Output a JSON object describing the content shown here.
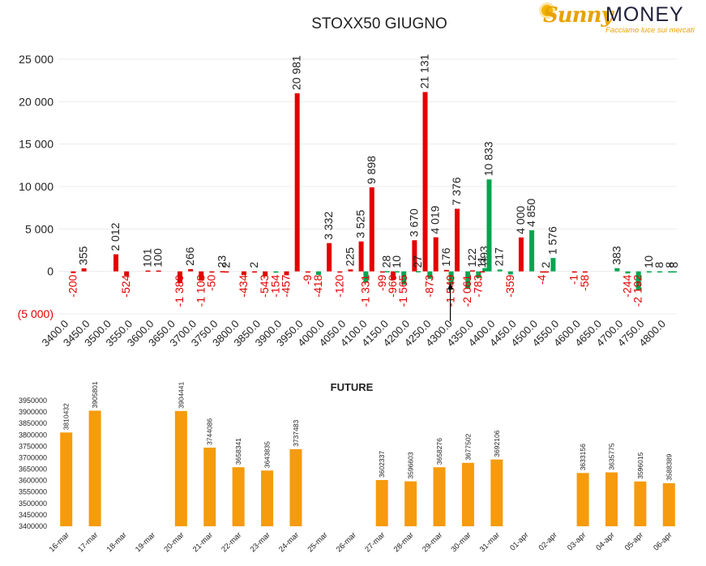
{
  "logo": {
    "brand_first": "Sunny",
    "brand_second": "MONEY",
    "tagline": "Facciamo luce sui mercati"
  },
  "colors": {
    "positive": "#00a650",
    "negative": "#e30000",
    "future_bar": "#f59b0d",
    "axis_text": "#222222",
    "negative_tick": "#e30000"
  },
  "chart_data": [
    {
      "type": "bar",
      "title": "STOXX50 GIUGNO",
      "ylim": [
        -5000,
        25000
      ],
      "yticks": [
        -5000,
        0,
        5000,
        10000,
        15000,
        20000,
        25000
      ],
      "ytick_labels": [
        "(5 000)",
        "0",
        "5 000",
        "10 000",
        "15 000",
        "20 000",
        "25 000"
      ],
      "grid": true,
      "legend": "none",
      "categories": [
        "3400.0",
        "3450.0",
        "3500.0",
        "3550.0",
        "3600.0",
        "3650.0",
        "3700.0",
        "3750.0",
        "3800.0",
        "3850.0",
        "3900.0",
        "3950.0",
        "4000.0",
        "4050.0",
        "4100.0",
        "4150.0",
        "4200.0",
        "4250.0",
        "4300.0",
        "4350.0",
        "4400.0",
        "4450.0",
        "4500.0",
        "4550.0",
        "4600.0",
        "4650.0",
        "4700.0",
        "4750.0",
        "4800.0"
      ],
      "marker_strike": "4300.0",
      "series": [
        {
          "color": "red",
          "values": [
            -200,
            2012,
            101,
            -1389,
            -1108,
            -50,
            -434,
            -543,
            -457,
            20981,
            -418,
            -120,
            3525,
            -960,
            3670,
            21131,
            -1549,
            122,
            -359,
            -4,
            -1,
            -58,
            null,
            null,
            null,
            null,
            null,
            null,
            null
          ],
          "labels": [
            "-200",
            "2 012",
            "101",
            "-1 389",
            "-1 108",
            "-50",
            "-434",
            "-543",
            "-457",
            "20 981",
            "-418",
            "-120",
            "3 525",
            "-960",
            "3 670",
            "21 131",
            "-1 549",
            "122",
            "-359",
            "-4",
            "-1",
            "-58",
            null,
            null,
            null,
            null,
            null,
            null,
            null
          ],
          "strikes": [
            "3400.0",
            "3500.0",
            "3600.0",
            "3650.0",
            "3700.0",
            "3750.0",
            "3800.0",
            "3850.0",
            "3900.0",
            "3950.0",
            "4000.0",
            "4050.0",
            "4100.0",
            "4150.0",
            "4200.0",
            "4250.0",
            "4300.0",
            "4350.0",
            "4450.0",
            "4500.0",
            "4600.0",
            "4600.0"
          ]
        }
      ],
      "bars": [
        {
          "slot": 0,
          "side": "r",
          "value": -200,
          "label": "-200",
          "color": "negative"
        },
        {
          "slot": 1,
          "side": "l",
          "value": 355,
          "label": "355",
          "color": "negative"
        },
        {
          "slot": 2,
          "side": "r",
          "value": 2012,
          "label": "2 012",
          "color": "negative"
        },
        {
          "slot": 3,
          "side": "l",
          "value": -524,
          "label": "-524",
          "color": "negative"
        },
        {
          "slot": 4,
          "side": "l",
          "value": 101,
          "label": "101",
          "color": "negative"
        },
        {
          "slot": 4,
          "side": "r",
          "value": 100,
          "label": "100",
          "color": "negative"
        },
        {
          "slot": 5,
          "side": "r",
          "value": -1389,
          "label": "-1 389",
          "color": "negative"
        },
        {
          "slot": 6,
          "side": "l",
          "value": 266,
          "label": "266",
          "color": "negative"
        },
        {
          "slot": 6,
          "side": "r",
          "value": -1108,
          "label": "-1 108",
          "color": "negative"
        },
        {
          "slot": 7,
          "side": "l",
          "value": -50,
          "label": "-50",
          "color": "negative"
        },
        {
          "slot": 7,
          "side": "r",
          "value": 23,
          "label": "23",
          "color": "negative"
        },
        {
          "slot": 7,
          "side": "r2",
          "value": 2,
          "label": "2",
          "color": "negative"
        },
        {
          "slot": 8,
          "side": "r",
          "value": -434,
          "label": "-434",
          "color": "negative"
        },
        {
          "slot": 9,
          "side": "l",
          "value": 2,
          "label": "2",
          "color": "negative"
        },
        {
          "slot": 9,
          "side": "r",
          "value": -543,
          "label": "-543",
          "color": "negative"
        },
        {
          "slot": 10,
          "side": "l",
          "value": -154,
          "label": "-154",
          "color": "positive"
        },
        {
          "slot": 10,
          "side": "r",
          "value": -457,
          "label": "-457",
          "color": "negative"
        },
        {
          "slot": 11,
          "side": "l",
          "value": 20981,
          "label": "20 981",
          "color": "negative"
        },
        {
          "slot": 11,
          "side": "r",
          "value": -9,
          "label": "-9",
          "color": "negative"
        },
        {
          "slot": 12,
          "side": "l",
          "value": -418,
          "label": "-418",
          "color": "positive"
        },
        {
          "slot": 12,
          "side": "r",
          "value": 3332,
          "label": "3 332",
          "color": "negative"
        },
        {
          "slot": 13,
          "side": "l",
          "value": -120,
          "label": "-120",
          "color": "negative"
        },
        {
          "slot": 13,
          "side": "r",
          "value": 225,
          "label": "225",
          "color": "negative"
        },
        {
          "slot": 14,
          "side": "l",
          "value": 3525,
          "label": "3 525",
          "color": "negative"
        },
        {
          "slot": 14,
          "side": "m",
          "value": -1331,
          "label": "-1 331",
          "color": "positive"
        },
        {
          "slot": 14,
          "side": "r",
          "value": 9898,
          "label": "9 898",
          "color": "negative"
        },
        {
          "slot": 15,
          "side": "l",
          "value": -99,
          "label": "-99",
          "color": "negative"
        },
        {
          "slot": 15,
          "side": "m",
          "value": 28,
          "label": "28",
          "color": "positive"
        },
        {
          "slot": 15,
          "side": "r",
          "value": -960,
          "label": "-960",
          "color": "negative"
        },
        {
          "slot": 15,
          "side": "r2",
          "value": 10,
          "label": "10",
          "color": "positive"
        },
        {
          "slot": 16,
          "side": "l",
          "value": -1565,
          "label": "-1 565",
          "color": "positive"
        },
        {
          "slot": 16,
          "side": "r",
          "value": 3670,
          "label": "3 670",
          "color": "negative"
        },
        {
          "slot": 16,
          "side": "r2",
          "value": 27,
          "label": "27",
          "color": "positive"
        },
        {
          "slot": 17,
          "side": "l",
          "value": 21131,
          "label": "21 131",
          "color": "negative"
        },
        {
          "slot": 17,
          "side": "m",
          "value": -873,
          "label": "-873",
          "color": "positive"
        },
        {
          "slot": 17,
          "side": "r",
          "value": 4019,
          "label": "4 019",
          "color": "negative"
        },
        {
          "slot": 18,
          "side": "l",
          "value": 176,
          "label": "176",
          "color": "negative"
        },
        {
          "slot": 18,
          "side": "m",
          "value": -1549,
          "label": "-1 549",
          "color": "positive"
        },
        {
          "slot": 18,
          "side": "r",
          "value": 7376,
          "label": "7 376",
          "color": "negative"
        },
        {
          "slot": 19,
          "side": "l",
          "value": -2061,
          "label": "-2 061",
          "color": "positive"
        },
        {
          "slot": 19,
          "side": "m",
          "value": 122,
          "label": "122",
          "color": "negative"
        },
        {
          "slot": 19,
          "side": "r",
          "value": -783,
          "label": "-783",
          "color": "positive"
        },
        {
          "slot": 19,
          "side": "r2",
          "value": 11,
          "label": "11",
          "color": "negative"
        },
        {
          "slot": 19,
          "side": "r3",
          "value": 393,
          "label": "393",
          "color": "positive"
        },
        {
          "slot": 20,
          "side": "l",
          "value": 10833,
          "label": "10 833",
          "color": "positive"
        },
        {
          "slot": 20,
          "side": "r",
          "value": 217,
          "label": "217",
          "color": "positive"
        },
        {
          "slot": 21,
          "side": "l",
          "value": -359,
          "label": "-359",
          "color": "positive"
        },
        {
          "slot": 21,
          "side": "r",
          "value": 4000,
          "label": "4 000",
          "color": "negative"
        },
        {
          "slot": 22,
          "side": "l",
          "value": 4850,
          "label": "4 850",
          "color": "positive"
        },
        {
          "slot": 22,
          "side": "r",
          "value": -4,
          "label": "-4",
          "color": "negative"
        },
        {
          "slot": 22,
          "side": "r2",
          "value": 2,
          "label": "2",
          "color": "negative"
        },
        {
          "slot": 23,
          "side": "l",
          "value": 1576,
          "label": "1 576",
          "color": "positive"
        },
        {
          "slot": 24,
          "side": "l",
          "value": -1,
          "label": "-1",
          "color": "negative"
        },
        {
          "slot": 24,
          "side": "r",
          "value": -58,
          "label": "-58",
          "color": "negative"
        },
        {
          "slot": 26,
          "side": "l",
          "value": 383,
          "label": "383",
          "color": "positive"
        },
        {
          "slot": 26,
          "side": "r",
          "value": -244,
          "label": "-244",
          "color": "positive"
        },
        {
          "slot": 27,
          "side": "l",
          "value": -2192,
          "label": "-2 192",
          "color": "positive"
        },
        {
          "slot": 27,
          "side": "r",
          "value": 10,
          "label": "10",
          "color": "positive"
        },
        {
          "slot": 28,
          "side": "l",
          "value": 8,
          "label": "8",
          "color": "positive"
        },
        {
          "slot": 28,
          "side": "r",
          "value": 8,
          "label": "8",
          "color": "positive"
        },
        {
          "slot": 28,
          "side": "r2",
          "value": 8,
          "label": "8",
          "color": "positive"
        }
      ]
    },
    {
      "type": "bar",
      "title": "FUTURE",
      "ylim": [
        3400000,
        3950000
      ],
      "yticks": [
        3400000,
        3450000,
        3500000,
        3550000,
        3600000,
        3650000,
        3700000,
        3750000,
        3800000,
        3850000,
        3900000,
        3950000
      ],
      "ytick_labels": [
        "3400000",
        "3450000",
        "3500000",
        "3550000",
        "3600000",
        "3650000",
        "3700000",
        "3750000",
        "3800000",
        "3850000",
        "3900000",
        "3950000"
      ],
      "grid": false,
      "legend": "none",
      "categories": [
        "16-mar",
        "17-mar",
        "18-mar",
        "19-mar",
        "20-mar",
        "21-mar",
        "22-mar",
        "23-mar",
        "24-mar",
        "25-mar",
        "26-mar",
        "27-mar",
        "28-mar",
        "29-mar",
        "30-mar",
        "31-mar",
        "01-apr",
        "02-apr",
        "03-apr",
        "04-apr",
        "05-apr",
        "06-apr"
      ],
      "values": [
        3810432,
        3905801,
        null,
        null,
        3904441,
        3744086,
        3658341,
        3643835,
        3737483,
        null,
        null,
        3602337,
        3596603,
        3658276,
        3677502,
        3692106,
        null,
        null,
        3633156,
        3635775,
        3596015,
        3588389
      ],
      "labels": [
        "3810432",
        "3905801",
        null,
        null,
        "3904441",
        "3744086",
        "3658341",
        "3643835",
        "3737483",
        null,
        null,
        "3602337",
        "3596603",
        "3658276",
        "3677502",
        "3692106",
        null,
        null,
        "3633156",
        "3635775",
        "3596015",
        "3588389"
      ]
    }
  ]
}
